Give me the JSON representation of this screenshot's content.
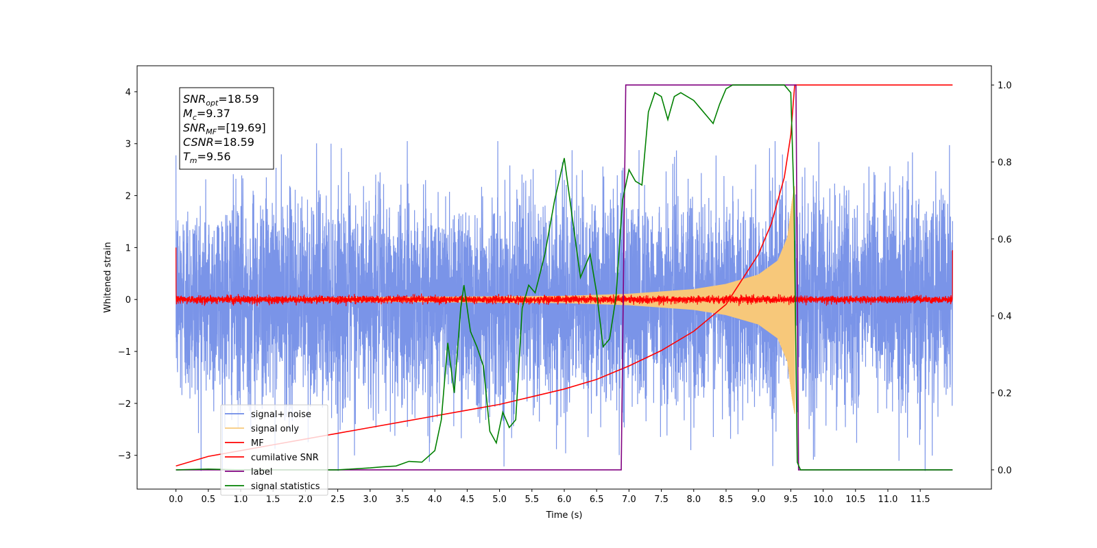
{
  "chart_data": {
    "type": "line",
    "xlabel": "Time (s)",
    "ylabel": "Whitened strain",
    "y2label": "",
    "xlim": [
      -0.6,
      12.6
    ],
    "ylim": [
      -3.65,
      4.5
    ],
    "y2lim": [
      -0.05,
      1.05
    ],
    "xticks": [
      0.0,
      0.5,
      1.0,
      1.5,
      2.0,
      2.5,
      3.0,
      3.5,
      4.0,
      4.5,
      5.0,
      5.5,
      6.0,
      6.5,
      7.0,
      7.5,
      8.0,
      8.5,
      9.0,
      9.5,
      10.0,
      10.5,
      11.0,
      11.5
    ],
    "xtick_labels": [
      "0.0",
      "0.5",
      "1.0",
      "1.5",
      "2.0",
      "2.5",
      "3.0",
      "3.5",
      "4.0",
      "4.5",
      "5.0",
      "5.5",
      "6.0",
      "6.5",
      "7.0",
      "7.5",
      "8.0",
      "8.5",
      "9.0",
      "9.5",
      "10.0",
      "10.5",
      "11.0",
      "11.5"
    ],
    "yticks": [
      -3,
      -2,
      -1,
      0,
      1,
      2,
      3,
      4
    ],
    "ytick_labels": [
      "−3",
      "−2",
      "−1",
      "0",
      "1",
      "2",
      "3",
      "4"
    ],
    "y2ticks": [
      0.0,
      0.2,
      0.4,
      0.6,
      0.8,
      1.0
    ],
    "y2tick_labels": [
      "0.0",
      "0.2",
      "0.4",
      "0.6",
      "0.8",
      "1.0"
    ],
    "legend_position": "lower-left",
    "series": [
      {
        "name": "signal+ noise",
        "color": "#6b88e6",
        "axis": "left",
        "description_type": "noise",
        "x_range": [
          0.0,
          12.0
        ],
        "noise_sigma": 1.0,
        "noise_max": 3.05,
        "noise_min": -3.3
      },
      {
        "name": "signal only",
        "color": "#f7c87a",
        "axis": "left",
        "description_type": "chirp",
        "x_range": [
          0.0,
          9.56
        ],
        "amplitude_points": [
          [
            0.0,
            0.02
          ],
          [
            6.0,
            0.07
          ],
          [
            7.0,
            0.11
          ],
          [
            8.0,
            0.2
          ],
          [
            8.5,
            0.3
          ],
          [
            9.0,
            0.48
          ],
          [
            9.3,
            0.75
          ],
          [
            9.45,
            1.2
          ],
          [
            9.52,
            1.9
          ],
          [
            9.56,
            2.2
          ]
        ]
      },
      {
        "name": "MF",
        "color": "#ff0000",
        "axis": "left",
        "description_type": "noise",
        "x_range": [
          0.0,
          12.0
        ],
        "noise_sigma": 0.035,
        "edge_values": [
          1.0,
          0.95
        ]
      },
      {
        "name": "cumilative SNR",
        "color": "#ff0000",
        "axis": "right",
        "x": [
          0.0,
          0.5,
          1.0,
          1.5,
          2.0,
          2.5,
          3.0,
          3.5,
          4.0,
          4.5,
          5.0,
          5.5,
          6.0,
          6.5,
          7.0,
          7.5,
          8.0,
          8.5,
          9.0,
          9.2,
          9.4,
          9.5,
          9.56,
          12.0
        ],
        "values": [
          0.01,
          0.035,
          0.05,
          0.065,
          0.08,
          0.095,
          0.11,
          0.125,
          0.14,
          0.155,
          0.17,
          0.19,
          0.21,
          0.235,
          0.27,
          0.31,
          0.36,
          0.43,
          0.56,
          0.64,
          0.76,
          0.87,
          1.0,
          1.0
        ]
      },
      {
        "name": "label",
        "color": "#800080",
        "axis": "right",
        "x": [
          0.0,
          6.88,
          6.95,
          9.58,
          9.62,
          12.0
        ],
        "values": [
          0.0,
          0.0,
          1.0,
          1.0,
          0.0,
          0.0
        ]
      },
      {
        "name": "signal statistics",
        "color": "#008000",
        "axis": "right",
        "x": [
          0.0,
          0.5,
          1.0,
          1.5,
          2.0,
          2.5,
          3.0,
          3.2,
          3.4,
          3.6,
          3.8,
          4.0,
          4.1,
          4.2,
          4.3,
          4.4,
          4.45,
          4.55,
          4.65,
          4.75,
          4.85,
          4.95,
          5.05,
          5.15,
          5.25,
          5.35,
          5.45,
          5.55,
          5.7,
          5.85,
          6.0,
          6.12,
          6.25,
          6.4,
          6.5,
          6.6,
          6.7,
          6.8,
          6.9,
          7.0,
          7.1,
          7.2,
          7.3,
          7.4,
          7.5,
          7.6,
          7.7,
          7.8,
          8.0,
          8.1,
          8.2,
          8.3,
          8.4,
          8.5,
          8.6,
          8.8,
          9.0,
          9.2,
          9.4,
          9.5,
          9.55,
          9.6,
          9.65,
          10.0,
          11.0,
          12.0
        ],
        "values": [
          0.0,
          0.002,
          0.0,
          0.0,
          0.0,
          0.0,
          0.005,
          0.008,
          0.01,
          0.022,
          0.02,
          0.05,
          0.13,
          0.33,
          0.2,
          0.42,
          0.48,
          0.36,
          0.32,
          0.27,
          0.1,
          0.07,
          0.15,
          0.11,
          0.13,
          0.42,
          0.48,
          0.46,
          0.56,
          0.7,
          0.81,
          0.66,
          0.5,
          0.56,
          0.46,
          0.32,
          0.34,
          0.45,
          0.7,
          0.78,
          0.75,
          0.74,
          0.93,
          0.98,
          0.97,
          0.91,
          0.97,
          0.98,
          0.96,
          0.94,
          0.92,
          0.9,
          0.95,
          0.99,
          1.0,
          1.0,
          1.0,
          1.0,
          1.0,
          0.98,
          0.7,
          0.02,
          0.0,
          0.0,
          0.0,
          0.0
        ]
      }
    ],
    "annotation_box": {
      "lines": [
        {
          "main": "SNR",
          "sub": "opt",
          "value": "=18.59"
        },
        {
          "main": "M",
          "sub": "c",
          "value": "=9.37"
        },
        {
          "main": "SNR",
          "sub": "MF",
          "value": "=[19.69]"
        },
        {
          "main": "CSNR",
          "sub": "",
          "value": "=18.59"
        },
        {
          "main": "T",
          "sub": "m",
          "value": "=9.56"
        }
      ]
    }
  }
}
